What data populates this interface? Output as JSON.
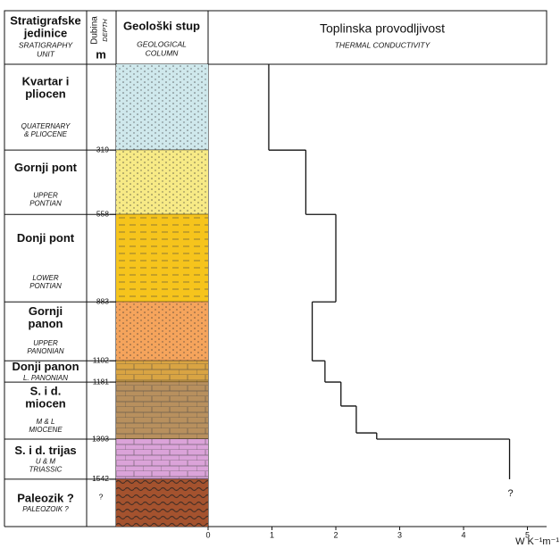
{
  "chart_data": {
    "type": "step",
    "header": {
      "units": [
        "Stratigrafske",
        "jedinice"
      ],
      "units_en": [
        "SRATIGRAPHY",
        "UNIT"
      ],
      "depth": "Dubina",
      "depth_en": "DEPTH",
      "depth_unit": "m",
      "column": "Geološki stup",
      "column_en": [
        "GEOLOGICAL",
        "COLUMN"
      ],
      "title": "Toplinska provodljivost",
      "subtitle": "THERMAL CONDUCTIVITY"
    },
    "units": [
      {
        "name": [
          "Kvartar i",
          "pliocen"
        ],
        "name_en": [
          "QUATERNARY",
          "& PLIOCENE"
        ],
        "color": "#cfe8ec"
      },
      {
        "name": [
          "Gornji pont"
        ],
        "name_en": [
          "UPPER",
          "PONTIAN"
        ],
        "color": "#f7ea86"
      },
      {
        "name": [
          "Donji pont"
        ],
        "name_en": [
          "LOWER",
          "PONTIAN"
        ],
        "color": "#f6c41c"
      },
      {
        "name": [
          "Gornji",
          "panon"
        ],
        "name_en": [
          "UPPER",
          "PANONIAN"
        ],
        "color": "#f5a45c"
      },
      {
        "name": [
          "Donji panon"
        ],
        "name_en": [
          "L. PANONIAN"
        ],
        "color": "#d9a443"
      },
      {
        "name": [
          "S. i d.",
          "miocen"
        ],
        "name_en": [
          "M & L",
          "MIOCENE"
        ],
        "color": "#b8905e"
      },
      {
        "name": [
          "S. i d. trijas"
        ],
        "name_en": [
          "U & M",
          "TRIASSIC"
        ],
        "color": "#dba3d9"
      },
      {
        "name": [
          "Paleozik ?"
        ],
        "name_en": [
          "PALEOZOIK ?"
        ],
        "color": "#a4522e"
      }
    ],
    "depth_ticks": [
      319,
      558,
      883,
      1102,
      1181,
      1393,
      1542
    ],
    "depth_unknown": "?",
    "conductivity": {
      "depths": [
        0,
        319,
        558,
        883,
        1102,
        1181,
        1270,
        1370,
        1393,
        1542
      ],
      "values": [
        0.95,
        1.53,
        2.0,
        1.63,
        1.83,
        2.08,
        2.32,
        2.64,
        4.72
      ],
      "color": "#111111",
      "unknown": "?"
    },
    "ylim": [
      0,
      1718
    ],
    "xlim": [
      0,
      5.3
    ],
    "xticks": [
      0,
      1,
      2,
      3,
      4,
      5
    ],
    "xlabel": "W K⁻¹m⁻¹"
  }
}
